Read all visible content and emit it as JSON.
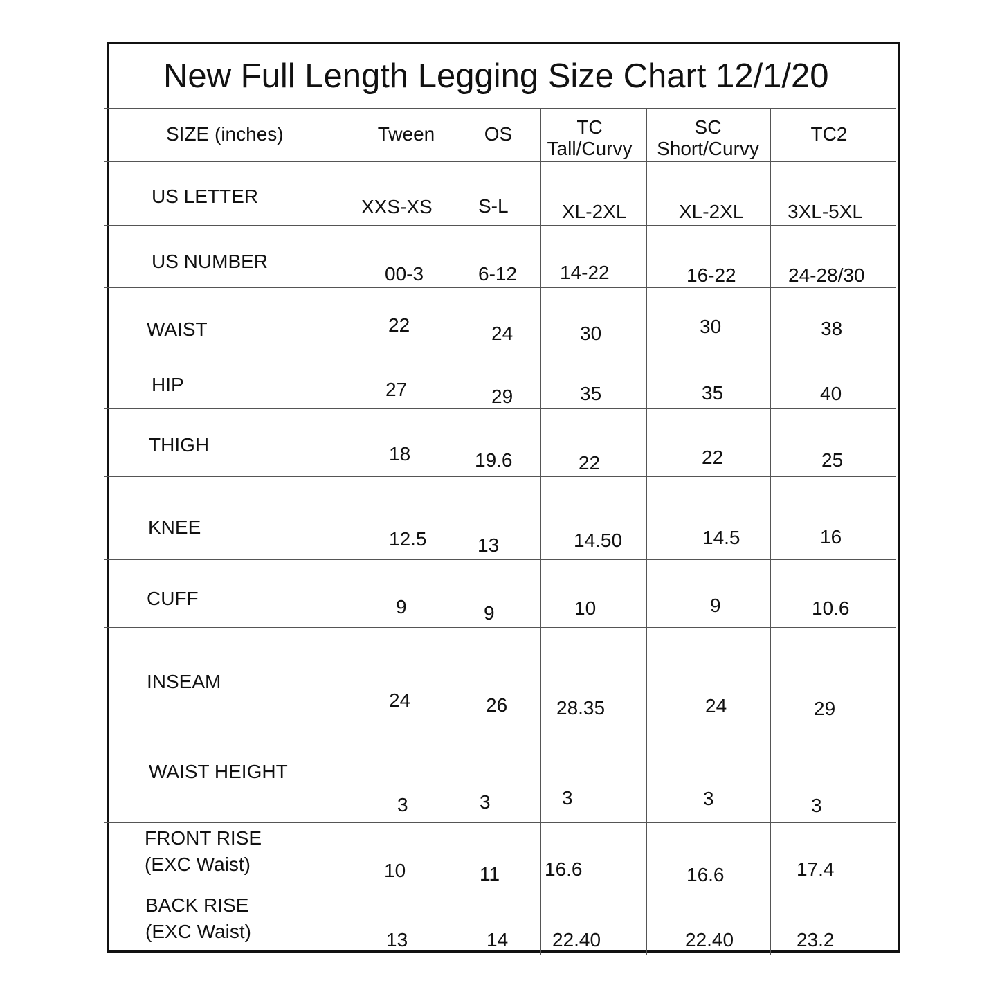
{
  "title": "New Full Length Legging Size Chart 12/1/20",
  "table": {
    "header_label": "SIZE (inches)",
    "columns": [
      {
        "line1": "Tween",
        "line2": ""
      },
      {
        "line1": "OS",
        "line2": ""
      },
      {
        "line1": "TC",
        "line2": "Tall/Curvy"
      },
      {
        "line1": "SC",
        "line2": "Short/Curvy"
      },
      {
        "line1": "TC2",
        "line2": ""
      }
    ],
    "rows": [
      {
        "label": "US LETTER",
        "label2": "",
        "values": [
          "XXS-XS",
          "S-L",
          "XL-2XL",
          "XL-2XL",
          "3XL-5XL"
        ]
      },
      {
        "label": "US NUMBER",
        "label2": "",
        "values": [
          "00-3",
          "6-12",
          "14-22",
          "16-22",
          "24-28/30"
        ]
      },
      {
        "label": "WAIST",
        "label2": "",
        "values": [
          "22",
          "24",
          "30",
          "30",
          "38"
        ]
      },
      {
        "label": "HIP",
        "label2": "",
        "values": [
          "27",
          "29",
          "35",
          "35",
          "40"
        ]
      },
      {
        "label": "THIGH",
        "label2": "",
        "values": [
          "18",
          "19.6",
          "22",
          "22",
          "25"
        ]
      },
      {
        "label": "KNEE",
        "label2": "",
        "values": [
          "12.5",
          "13",
          "14.50",
          "14.5",
          "16"
        ]
      },
      {
        "label": "CUFF",
        "label2": "",
        "values": [
          "9",
          "9",
          "10",
          "9",
          "10.6"
        ]
      },
      {
        "label": "INSEAM",
        "label2": "",
        "values": [
          "24",
          "26",
          "28.35",
          "24",
          "29"
        ]
      },
      {
        "label": "WAIST HEIGHT",
        "label2": "",
        "values": [
          "3",
          "3",
          "3",
          "3",
          "3"
        ]
      },
      {
        "label": "FRONT RISE",
        "label2": "(EXC Waist)",
        "values": [
          "10",
          "11",
          "16.6",
          "16.6",
          "17.4"
        ]
      },
      {
        "label": "BACK RISE",
        "label2": "(EXC Waist)",
        "values": [
          "13",
          "14",
          "22.40",
          "22.40",
          "23.2"
        ]
      }
    ]
  }
}
